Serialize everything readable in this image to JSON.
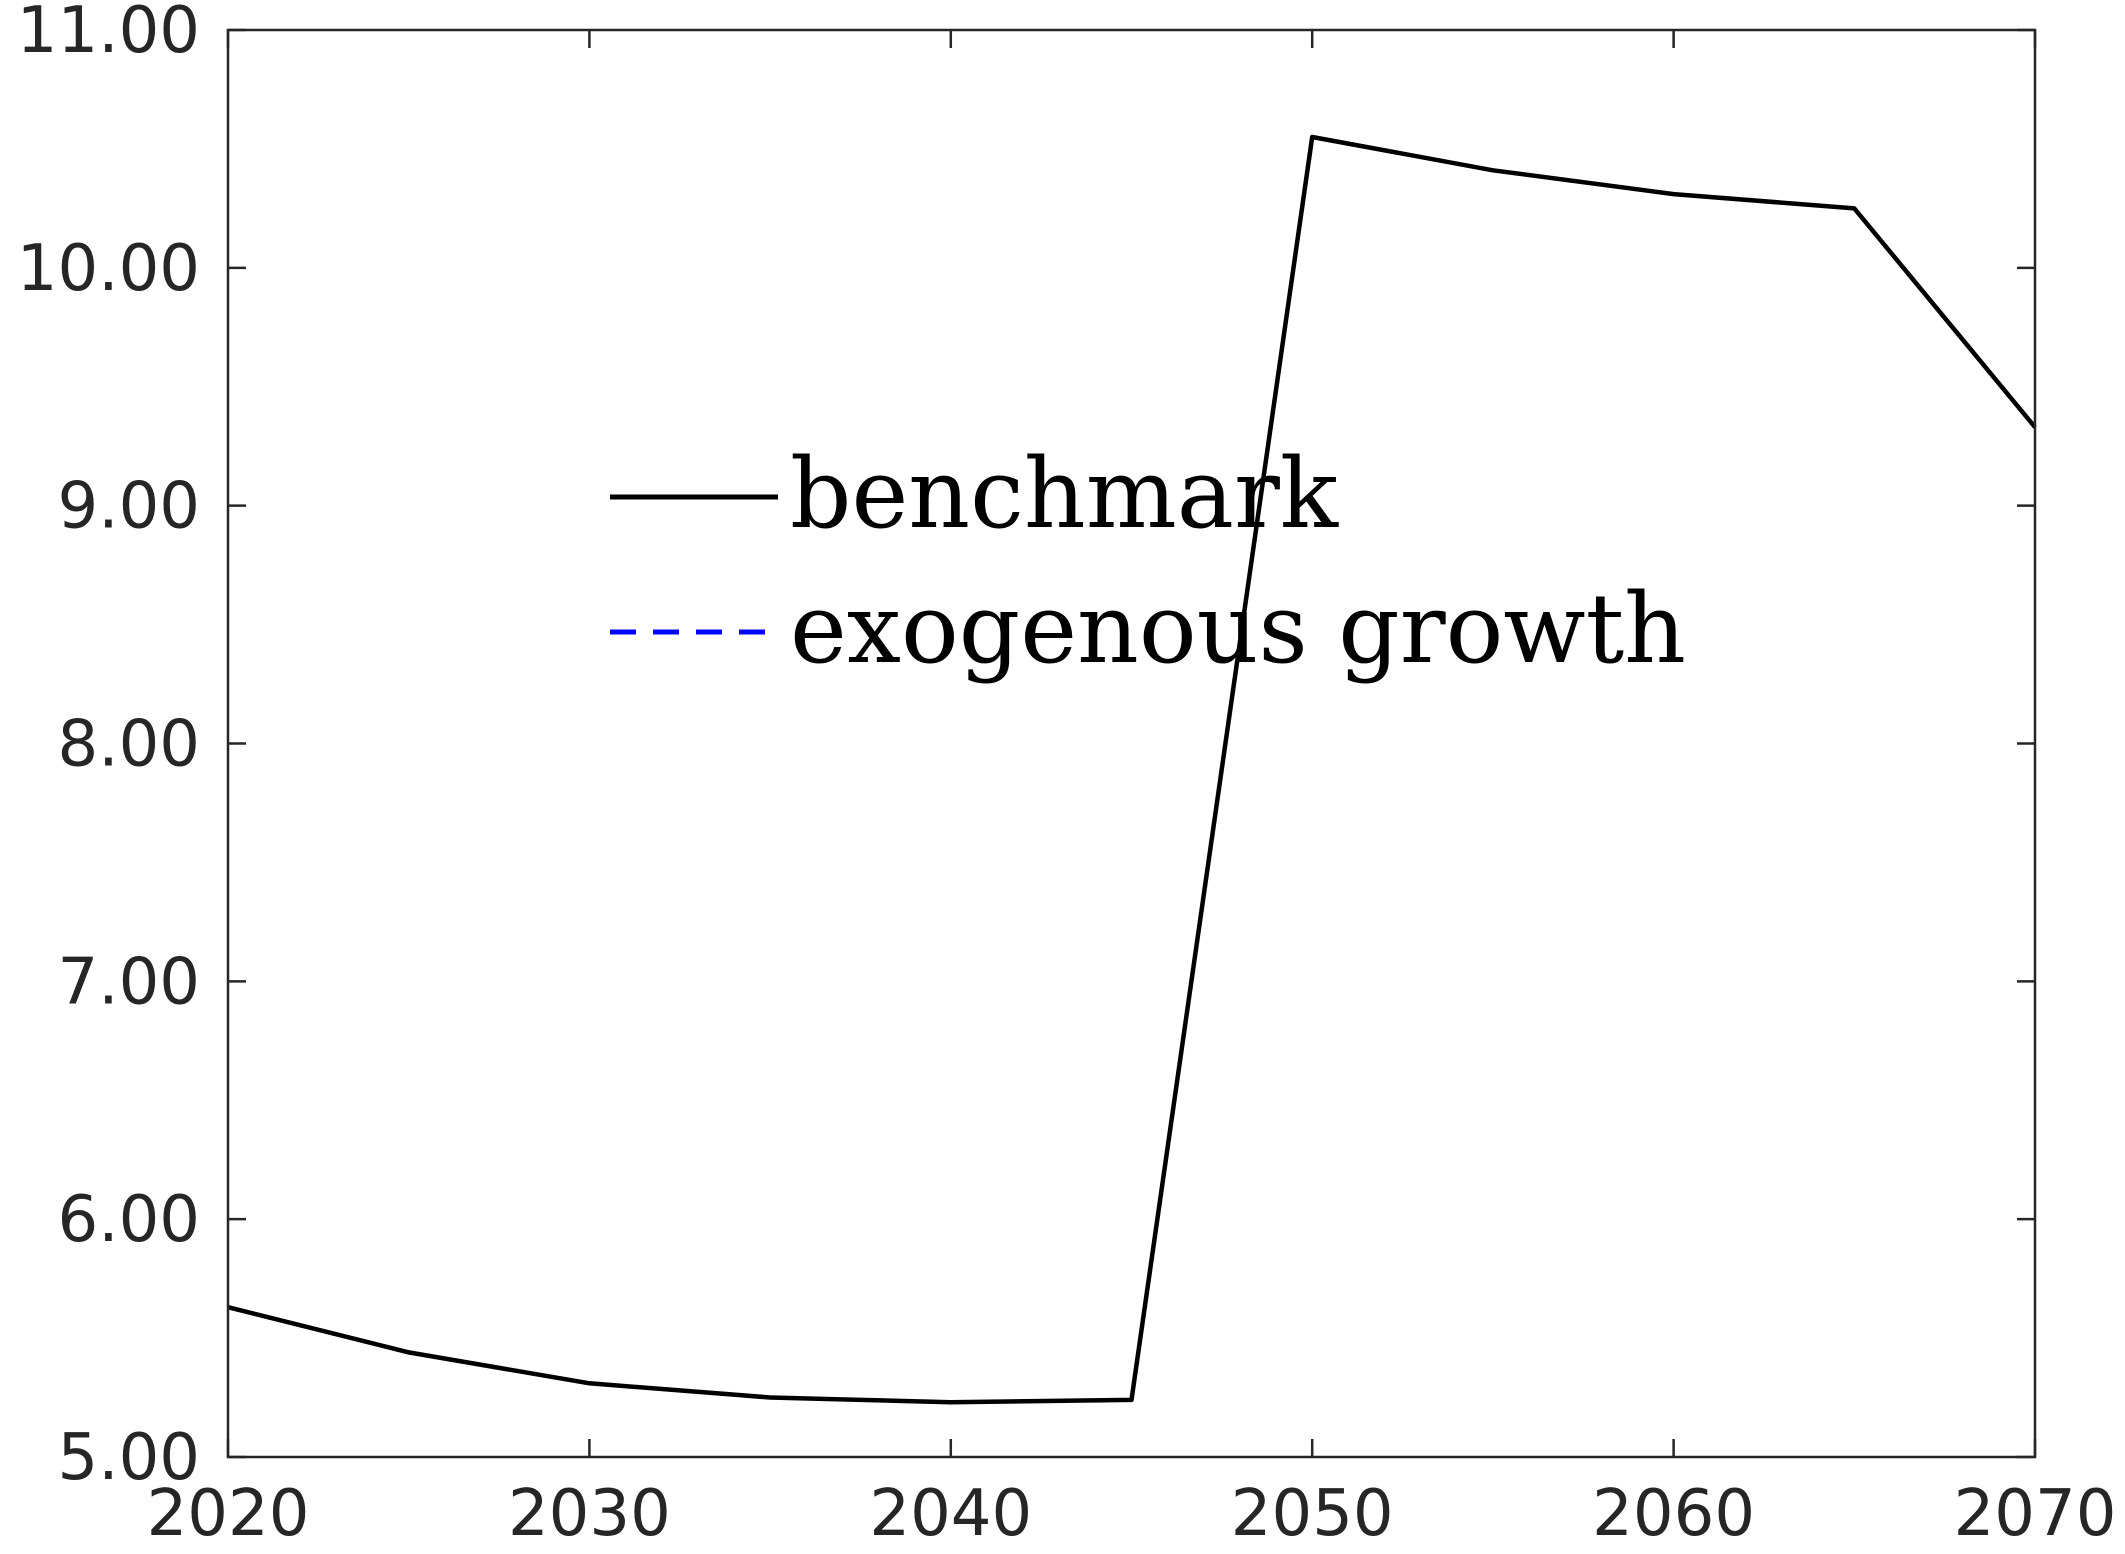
{
  "chart_data": {
    "type": "line",
    "title": "",
    "xlabel": "",
    "ylabel": "",
    "xlim": [
      2020,
      2070
    ],
    "ylim": [
      5.0,
      11.0
    ],
    "x_ticks": [
      "2020",
      "2030",
      "2040",
      "2050",
      "2060",
      "2070"
    ],
    "y_ticks": [
      "5.00",
      "6.00",
      "7.00",
      "8.00",
      "9.00",
      "10.00",
      "11.00"
    ],
    "grid": false,
    "legend_position": "upper-center",
    "series": [
      {
        "name": "benchmark",
        "color": "#000000",
        "style": "solid",
        "x": [
          2020,
          2025,
          2030,
          2035,
          2040,
          2045,
          2050,
          2055,
          2060,
          2065,
          2070
        ],
        "y": [
          5.63,
          5.44,
          5.31,
          5.25,
          5.23,
          5.24,
          10.55,
          10.41,
          10.31,
          10.25,
          9.33
        ]
      },
      {
        "name": "exogenous growth",
        "color": "#0000ff",
        "style": "dashed",
        "x": [],
        "y": []
      }
    ]
  }
}
